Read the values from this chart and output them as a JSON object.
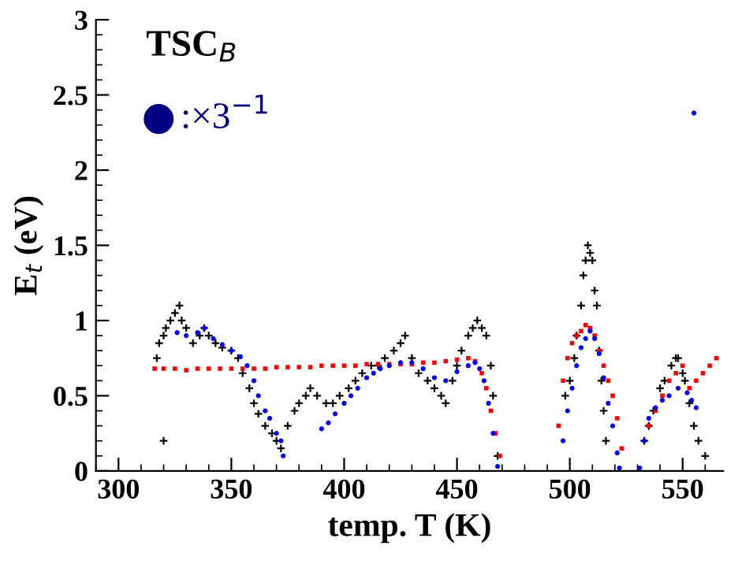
{
  "chart_data": {
    "type": "scatter",
    "xlabel": "temp. T (K)",
    "ylabel": "E$_{t}$ (eV)",
    "annotations": [
      "TSC$_{B}$",
      ":×3$^{−1}$"
    ],
    "xlim": [
      290,
      568
    ],
    "xticks": [
      300,
      350,
      400,
      450,
      500,
      550
    ],
    "ylim": [
      0,
      3
    ],
    "yticks": [
      0,
      0.5,
      1,
      1.5,
      2,
      2.5,
      3
    ],
    "grid": false,
    "legend": false,
    "series": [
      {
        "color": "#000000",
        "marker": "cross",
        "x": [
          317,
          318,
          320,
          320,
          321,
          323,
          325,
          327,
          328,
          330,
          333,
          336,
          338,
          340,
          343,
          346,
          350,
          353,
          355,
          358,
          360,
          362,
          365,
          368,
          370,
          372,
          375,
          378,
          380,
          383,
          385,
          388,
          392,
          395,
          398,
          402,
          405,
          408,
          412,
          415,
          418,
          422,
          425,
          427,
          430,
          433,
          437,
          440,
          443,
          445,
          448,
          450,
          452,
          455,
          457,
          459,
          461,
          463,
          465,
          466,
          468,
          498,
          500,
          502,
          503,
          505,
          506,
          507,
          508,
          509,
          510,
          511,
          512,
          513,
          514,
          515,
          516,
          533,
          535,
          537,
          540,
          542,
          545,
          547,
          548,
          550,
          551,
          553,
          555,
          557,
          560
        ],
        "values": [
          0.75,
          0.85,
          0.9,
          0.2,
          0.95,
          1.0,
          1.05,
          1.1,
          1.0,
          0.95,
          0.85,
          0.9,
          0.95,
          0.9,
          0.85,
          0.82,
          0.8,
          0.75,
          0.65,
          0.55,
          0.45,
          0.38,
          0.3,
          0.25,
          0.2,
          0.15,
          0.3,
          0.4,
          0.45,
          0.5,
          0.55,
          0.5,
          0.45,
          0.45,
          0.5,
          0.55,
          0.6,
          0.65,
          0.7,
          0.7,
          0.75,
          0.8,
          0.85,
          0.9,
          0.75,
          0.65,
          0.6,
          0.55,
          0.5,
          0.45,
          0.6,
          0.7,
          0.8,
          0.9,
          0.95,
          1.0,
          0.95,
          0.9,
          0.7,
          0.5,
          0.1,
          0.5,
          0.6,
          0.75,
          0.9,
          1.1,
          1.3,
          1.4,
          1.5,
          1.45,
          1.4,
          1.2,
          1.1,
          0.8,
          0.6,
          0.4,
          0.2,
          0.2,
          0.3,
          0.4,
          0.55,
          0.6,
          0.7,
          0.75,
          0.75,
          0.65,
          0.6,
          0.45,
          0.3,
          0.2,
          0.1
        ]
      },
      {
        "color": "#ff0000",
        "marker": "square",
        "x": [
          316,
          320,
          325,
          330,
          335,
          340,
          345,
          350,
          355,
          360,
          365,
          370,
          375,
          380,
          385,
          390,
          395,
          400,
          405,
          410,
          415,
          420,
          425,
          430,
          435,
          440,
          445,
          450,
          455,
          458,
          461,
          463,
          465,
          467,
          469,
          495,
          497,
          499,
          501,
          503,
          505,
          507,
          509,
          511,
          513,
          515,
          517,
          519,
          521,
          523,
          535,
          538,
          541,
          544,
          547,
          550,
          553,
          556,
          559,
          562,
          565
        ],
        "values": [
          0.68,
          0.68,
          0.68,
          0.67,
          0.68,
          0.68,
          0.68,
          0.68,
          0.68,
          0.68,
          0.68,
          0.69,
          0.69,
          0.69,
          0.69,
          0.7,
          0.7,
          0.7,
          0.7,
          0.71,
          0.71,
          0.71,
          0.71,
          0.71,
          0.72,
          0.72,
          0.73,
          0.74,
          0.75,
          0.73,
          0.65,
          0.55,
          0.4,
          0.25,
          0.1,
          0.3,
          0.6,
          0.75,
          0.85,
          0.9,
          0.93,
          0.97,
          0.95,
          0.9,
          0.8,
          0.7,
          0.6,
          0.5,
          0.35,
          0.15,
          0.3,
          0.4,
          0.5,
          0.6,
          0.65,
          0.7,
          0.55,
          0.6,
          0.65,
          0.7,
          0.75
        ]
      },
      {
        "color": "#0000ff",
        "marker": "circle",
        "x": [
          326,
          330,
          335,
          338,
          342,
          346,
          350,
          354,
          357,
          360,
          362,
          365,
          367,
          370,
          372,
          373,
          390,
          393,
          396,
          400,
          403,
          406,
          410,
          413,
          416,
          420,
          425,
          430,
          435,
          440,
          445,
          450,
          455,
          458,
          460,
          462,
          464,
          466,
          468,
          497,
          499,
          501,
          503,
          505,
          507,
          509,
          511,
          513,
          515,
          517,
          519,
          521,
          522,
          531,
          533,
          535,
          538,
          541,
          544,
          548,
          552,
          554,
          556,
          555
        ],
        "values": [
          0.92,
          0.9,
          0.92,
          0.95,
          0.88,
          0.84,
          0.8,
          0.76,
          0.7,
          0.6,
          0.5,
          0.4,
          0.35,
          0.25,
          0.2,
          0.1,
          0.28,
          0.32,
          0.38,
          0.45,
          0.5,
          0.55,
          0.62,
          0.65,
          0.68,
          0.7,
          0.72,
          0.72,
          0.68,
          0.62,
          0.6,
          0.66,
          0.7,
          0.72,
          0.68,
          0.6,
          0.45,
          0.25,
          0.03,
          0.2,
          0.4,
          0.55,
          0.7,
          0.82,
          0.88,
          0.93,
          0.88,
          0.78,
          0.62,
          0.45,
          0.3,
          0.12,
          0.02,
          0.02,
          0.2,
          0.35,
          0.42,
          0.47,
          0.5,
          0.55,
          0.52,
          0.47,
          0.42,
          2.38
        ]
      }
    ]
  }
}
